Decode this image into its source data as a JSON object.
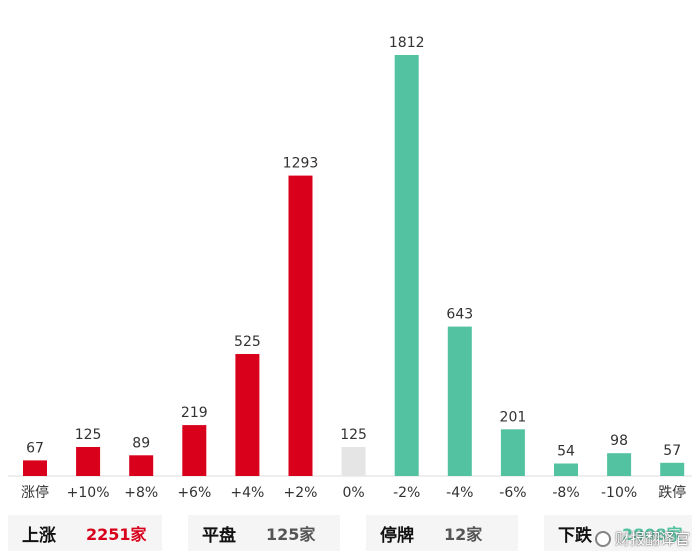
{
  "chart_data": {
    "type": "bar",
    "categories": [
      "涨停",
      "+10%",
      "+8%",
      "+6%",
      "+4%",
      "+2%",
      "0%",
      "-2%",
      "-4%",
      "-6%",
      "-8%",
      "-10%",
      "跌停"
    ],
    "values": [
      67,
      125,
      89,
      219,
      525,
      1293,
      125,
      1812,
      643,
      201,
      54,
      98,
      57
    ],
    "value_labels": [
      "67",
      "125",
      "89",
      "219",
      "525",
      "1293",
      "125",
      "1812",
      "643",
      "201",
      "54",
      "98",
      "57"
    ],
    "ylim": [
      0,
      1812
    ],
    "grid": false,
    "colors": {
      "up": "#d9001b",
      "flat": "#e5e5e5",
      "down": "#52c2a0"
    },
    "bar_color_groups": [
      "up",
      "up",
      "up",
      "up",
      "up",
      "up",
      "flat",
      "down",
      "down",
      "down",
      "down",
      "down",
      "down"
    ]
  },
  "summary": {
    "up": {
      "label": "上涨",
      "value": "2251家",
      "color": "#d9001b"
    },
    "flat": {
      "label": "平盘",
      "value": "125家",
      "color": "#555555"
    },
    "suspended": {
      "label": "停牌",
      "value": "12家",
      "color": "#555555"
    },
    "down": {
      "label": "下跌",
      "value": "2808家",
      "color": "#52c2a0"
    }
  },
  "watermark": {
    "text": "财报翻译官",
    "icon": "weibo-icon"
  }
}
